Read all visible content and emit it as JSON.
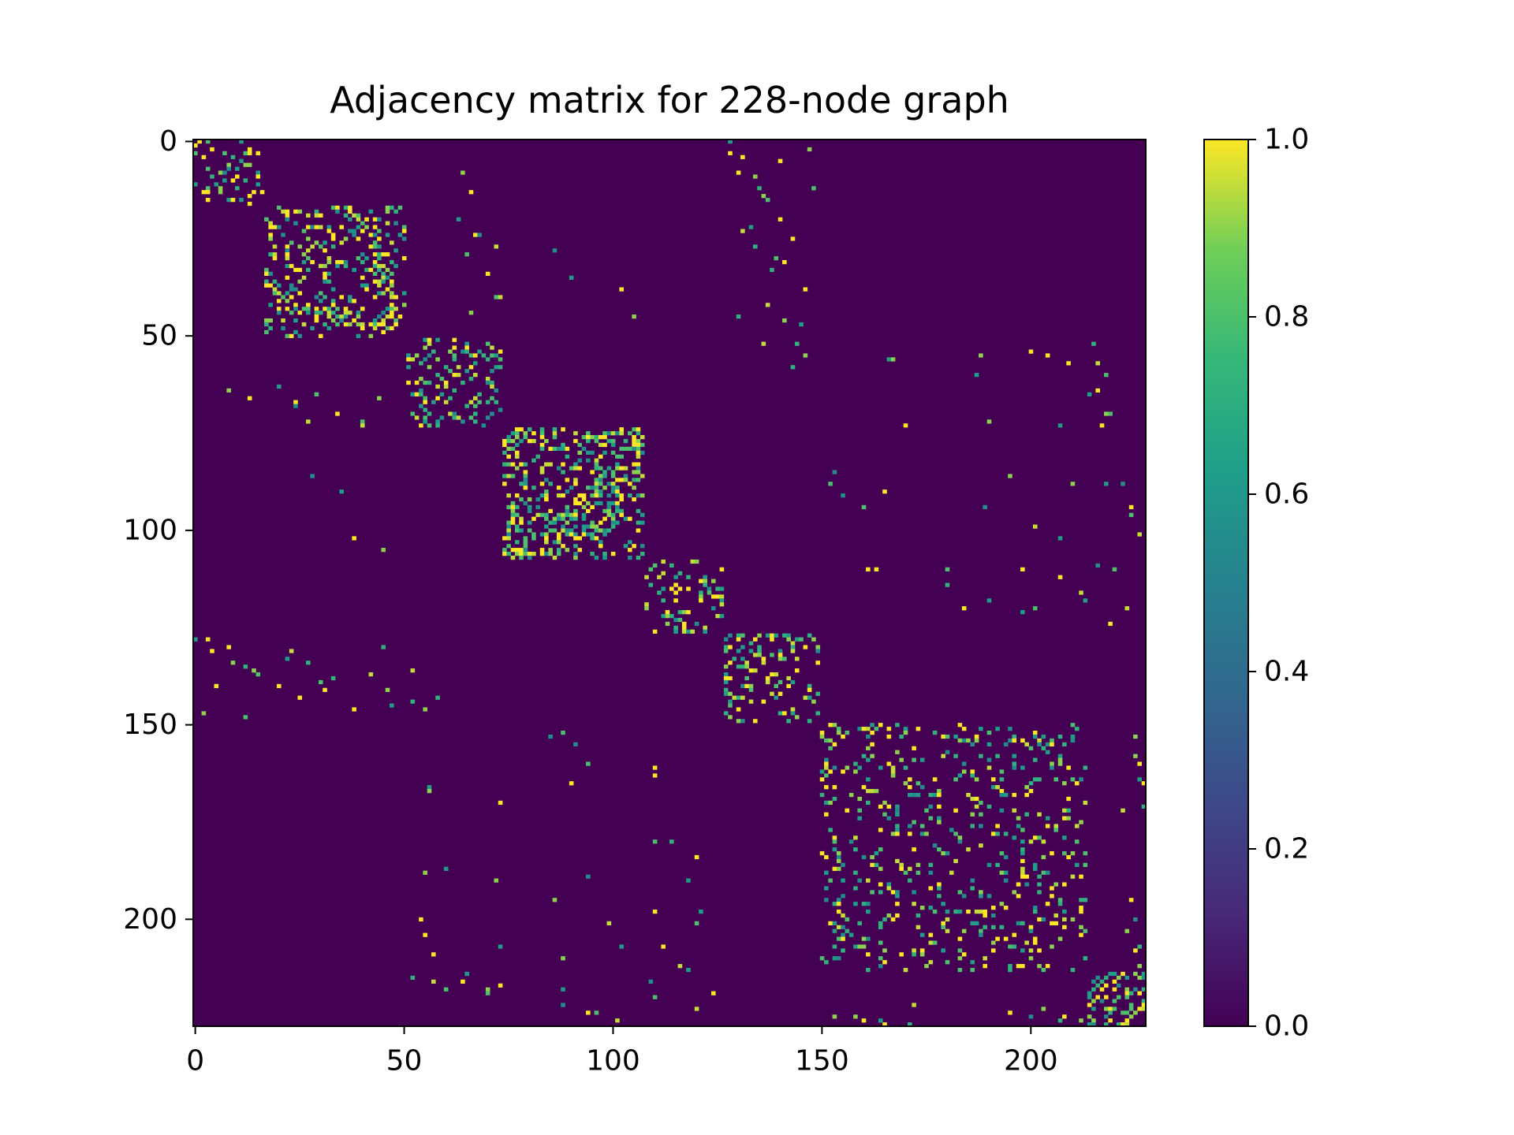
{
  "chart_data": {
    "type": "heatmap",
    "title": "Adjacency matrix for 228-node graph",
    "xlabel": "",
    "ylabel": "",
    "n_nodes": 228,
    "x_ticks": [
      0,
      50,
      100,
      150,
      200
    ],
    "y_ticks": [
      0,
      50,
      100,
      150,
      200
    ],
    "xlim": [
      -0.5,
      227.5
    ],
    "ylim": [
      227.5,
      -0.5
    ],
    "colormap": "viridis",
    "colorbar": {
      "range": [
        0.0,
        1.0
      ],
      "ticks": [
        0.0,
        0.2,
        0.4,
        0.6,
        0.8,
        1.0
      ],
      "tick_labels": [
        "0.0",
        "0.2",
        "0.4",
        "0.6",
        "0.8",
        "1.0"
      ]
    },
    "background_value": 0.0,
    "diagonal_blocks": [
      {
        "start": 0,
        "end": 17,
        "density": 0.2
      },
      {
        "start": 17,
        "end": 51,
        "density": 0.22
      },
      {
        "start": 51,
        "end": 74,
        "density": 0.24
      },
      {
        "start": 74,
        "end": 108,
        "density": 0.3
      },
      {
        "start": 108,
        "end": 127,
        "density": 0.22
      },
      {
        "start": 127,
        "end": 150,
        "density": 0.2
      },
      {
        "start": 150,
        "end": 214,
        "density": 0.12
      },
      {
        "start": 214,
        "end": 228,
        "density": 0.3
      }
    ],
    "off_block_edges": [
      [
        3,
        128
      ],
      [
        8,
        130
      ],
      [
        12,
        135
      ],
      [
        2,
        147
      ],
      [
        5,
        140
      ],
      [
        14,
        136
      ],
      [
        20,
        63
      ],
      [
        24,
        67
      ],
      [
        29,
        65
      ],
      [
        34,
        70
      ],
      [
        40,
        72
      ],
      [
        44,
        66
      ],
      [
        28,
        86
      ],
      [
        35,
        90
      ],
      [
        38,
        102
      ],
      [
        45,
        105
      ],
      [
        22,
        133
      ],
      [
        30,
        139
      ],
      [
        42,
        137
      ],
      [
        23,
        131
      ],
      [
        27,
        134
      ],
      [
        33,
        138
      ],
      [
        46,
        141
      ],
      [
        52,
        144
      ],
      [
        55,
        146
      ],
      [
        58,
        143
      ],
      [
        56,
        166
      ],
      [
        60,
        187
      ],
      [
        54,
        200
      ],
      [
        57,
        209
      ],
      [
        64,
        216
      ],
      [
        70,
        218
      ],
      [
        64,
        8
      ],
      [
        66,
        13
      ],
      [
        68,
        24
      ],
      [
        72,
        27
      ],
      [
        73,
        40
      ],
      [
        85,
        153
      ],
      [
        90,
        165
      ],
      [
        94,
        189
      ],
      [
        99,
        201
      ],
      [
        102,
        207
      ],
      [
        88,
        218
      ],
      [
        96,
        224
      ],
      [
        110,
        161
      ],
      [
        114,
        180
      ],
      [
        118,
        190
      ],
      [
        121,
        198
      ],
      [
        112,
        207
      ],
      [
        116,
        212
      ],
      [
        109,
        216
      ],
      [
        124,
        219
      ],
      [
        128,
        0
      ],
      [
        131,
        4
      ],
      [
        134,
        9
      ],
      [
        137,
        15
      ],
      [
        140,
        20
      ],
      [
        143,
        25
      ],
      [
        146,
        38
      ],
      [
        148,
        12
      ],
      [
        130,
        45
      ],
      [
        136,
        52
      ],
      [
        141,
        31
      ],
      [
        145,
        47
      ],
      [
        152,
        88
      ],
      [
        155,
        91
      ],
      [
        160,
        94
      ],
      [
        163,
        110
      ],
      [
        167,
        56
      ],
      [
        170,
        73
      ],
      [
        180,
        110
      ],
      [
        184,
        120
      ],
      [
        188,
        55
      ],
      [
        190,
        72
      ],
      [
        195,
        86
      ],
      [
        198,
        110
      ],
      [
        201,
        120
      ],
      [
        204,
        55
      ],
      [
        207,
        73
      ],
      [
        210,
        88
      ],
      [
        213,
        118
      ],
      [
        153,
        225
      ],
      [
        160,
        226
      ],
      [
        165,
        227
      ],
      [
        172,
        222
      ],
      [
        195,
        224
      ],
      [
        203,
        223
      ],
      [
        208,
        225
      ],
      [
        212,
        226
      ],
      [
        215,
        52
      ],
      [
        216,
        57
      ],
      [
        218,
        60
      ],
      [
        214,
        65
      ],
      [
        219,
        70
      ],
      [
        217,
        73
      ],
      [
        220,
        110
      ],
      [
        222,
        88
      ],
      [
        224,
        94
      ],
      [
        226,
        101
      ],
      [
        223,
        120
      ],
      [
        225,
        158
      ],
      [
        226,
        164
      ],
      [
        227,
        171
      ],
      [
        224,
        195
      ],
      [
        225,
        200
      ],
      [
        226,
        207
      ]
    ]
  }
}
